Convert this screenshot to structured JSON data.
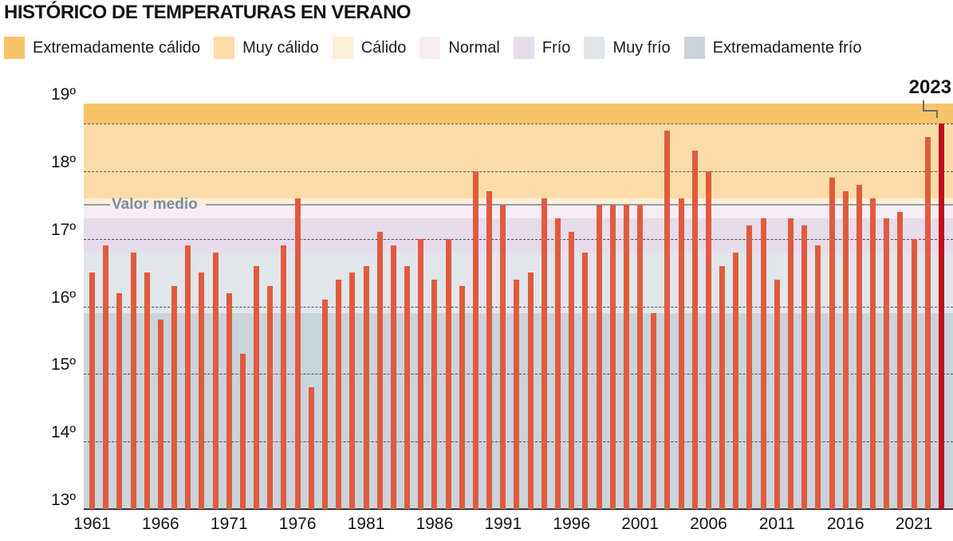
{
  "title": "HISTÓRICO DE TEMPERATURAS EN VERANO",
  "legend": {
    "items": [
      {
        "label": "Extremadamente cálido",
        "color": "#F8C469"
      },
      {
        "label": "Muy cálido",
        "color": "#FBDCA9"
      },
      {
        "label": "Cálido",
        "color": "#FDEED7"
      },
      {
        "label": "Normal",
        "color": "#F5EDF3"
      },
      {
        "label": "Frío",
        "color": "#E7DCE9"
      },
      {
        "label": "Muy frío",
        "color": "#E0E6EA"
      },
      {
        "label": "Extremadamente frío",
        "color": "#CAD4DB"
      }
    ]
  },
  "annotation": {
    "label": "2023"
  },
  "mean_line": {
    "label": "Valor medio",
    "value": 17.5,
    "line_color": "#8FA1AC",
    "label_color": "#78909F"
  },
  "chart_data": {
    "type": "bar",
    "title": "Histórico de temperaturas en verano",
    "xlabel": "",
    "ylabel": "",
    "ylim": [
      13,
      19
    ],
    "y_ticks": [
      {
        "value": 19,
        "label": "19º"
      },
      {
        "value": 18,
        "label": "18º"
      },
      {
        "value": 17,
        "label": "17º"
      },
      {
        "value": 16,
        "label": "16º"
      },
      {
        "value": 15,
        "label": "15º"
      },
      {
        "value": 14,
        "label": "14º"
      },
      {
        "value": 13,
        "label": "13º"
      }
    ],
    "x_ticks": [
      1961,
      1966,
      1971,
      1976,
      1981,
      1986,
      1991,
      1996,
      2001,
      2006,
      2011,
      2016,
      2021
    ],
    "gridlines": [
      18.7,
      18,
      17,
      16,
      15,
      14
    ],
    "grid": true,
    "legend_position": "top",
    "mean_value": 17.5,
    "mean_label": "Valor medio",
    "bar_color": "#E05B3E",
    "highlight_year": 2023,
    "highlight_color": "#C0101E",
    "bands": [
      {
        "label": "Extremadamente cálido",
        "from": 18.7,
        "to": 19.0,
        "color": "#F8C469"
      },
      {
        "label": "Muy cálido",
        "from": 17.6,
        "to": 18.7,
        "color": "#FBDCA9"
      },
      {
        "label": "Cálido",
        "from": 17.5,
        "to": 17.6,
        "color": "#FDEED7"
      },
      {
        "label": "Normal",
        "from": 17.3,
        "to": 17.5,
        "color": "#F5EDF3"
      },
      {
        "label": "Frío",
        "from": 16.8,
        "to": 17.3,
        "color": "#E7DCE9"
      },
      {
        "label": "Muy frío",
        "from": 15.9,
        "to": 16.8,
        "color": "#E0E6EA"
      },
      {
        "label": "Extremadamente frío",
        "from": 13.0,
        "to": 15.9,
        "color": "#CAD4DB"
      }
    ],
    "categories": [
      1961,
      1962,
      1963,
      1964,
      1965,
      1966,
      1967,
      1968,
      1969,
      1970,
      1971,
      1972,
      1973,
      1974,
      1975,
      1976,
      1977,
      1978,
      1979,
      1980,
      1981,
      1982,
      1983,
      1984,
      1985,
      1986,
      1987,
      1988,
      1989,
      1990,
      1991,
      1992,
      1993,
      1994,
      1995,
      1996,
      1997,
      1998,
      1999,
      2000,
      2001,
      2002,
      2003,
      2004,
      2005,
      2006,
      2007,
      2008,
      2009,
      2010,
      2011,
      2012,
      2013,
      2014,
      2015,
      2016,
      2017,
      2018,
      2019,
      2020,
      2021,
      2022,
      2023
    ],
    "values": [
      16.5,
      16.9,
      16.2,
      16.8,
      16.5,
      15.8,
      16.3,
      16.9,
      16.5,
      16.8,
      16.2,
      15.3,
      16.6,
      16.3,
      16.9,
      17.6,
      14.8,
      16.1,
      16.4,
      16.5,
      16.6,
      17.1,
      16.9,
      16.6,
      17.0,
      16.4,
      17.0,
      16.3,
      18.0,
      17.7,
      17.5,
      16.4,
      16.5,
      17.6,
      17.3,
      17.1,
      16.8,
      17.5,
      17.5,
      17.5,
      17.5,
      15.9,
      18.6,
      17.6,
      18.3,
      18.0,
      16.6,
      16.8,
      17.2,
      17.3,
      16.4,
      17.3,
      17.2,
      16.9,
      17.9,
      17.7,
      17.8,
      17.6,
      17.3,
      17.4,
      17.0,
      18.5,
      18.7
    ]
  }
}
